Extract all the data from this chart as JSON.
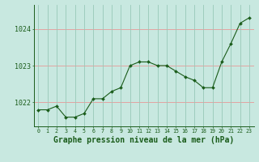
{
  "hours": [
    0,
    1,
    2,
    3,
    4,
    5,
    6,
    7,
    8,
    9,
    10,
    11,
    12,
    13,
    14,
    15,
    16,
    17,
    18,
    19,
    20,
    21,
    22,
    23
  ],
  "pressure": [
    1021.8,
    1021.8,
    1021.9,
    1021.6,
    1021.6,
    1021.7,
    1022.1,
    1022.1,
    1022.3,
    1022.4,
    1023.0,
    1023.1,
    1023.1,
    1023.0,
    1023.0,
    1022.85,
    1022.7,
    1022.6,
    1022.4,
    1022.4,
    1023.1,
    1023.6,
    1024.15,
    1024.3
  ],
  "line_color": "#1a5c1a",
  "marker": "D",
  "marker_size": 2.0,
  "background_color": "#c8e8e0",
  "plot_bg_color": "#c8e8e0",
  "grid_color_horiz": "#e89898",
  "grid_color_vert": "#98c8b8",
  "xlabel": "Graphe pression niveau de la mer (hPa)",
  "xlabel_fontsize": 7,
  "ylim": [
    1021.35,
    1024.65
  ],
  "yticks": [
    1022,
    1023,
    1024
  ],
  "xtick_fontsize": 4.8,
  "ytick_fontsize": 6.0
}
